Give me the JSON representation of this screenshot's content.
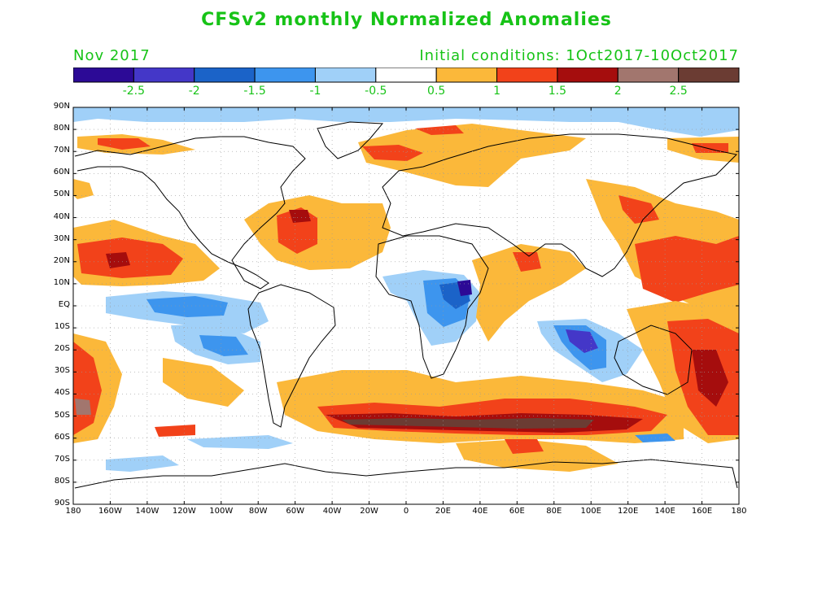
{
  "title": "CFSv2 monthly Normalized Anomalies",
  "month": "Nov 2017",
  "initial_conditions": "Initial conditions: 1Oct2017-10Oct2017",
  "colors": {
    "text": "#17c317",
    "ocean_default": "#ffffff",
    "coast": "#000000"
  },
  "colorbar": {
    "bins": [
      {
        "color": "#2c0a96"
      },
      {
        "color": "#4437c8"
      },
      {
        "color": "#1b63c8"
      },
      {
        "color": "#3d95ee"
      },
      {
        "color": "#a0d0f8"
      },
      {
        "color": "#ffffff"
      },
      {
        "color": "#fbb83a"
      },
      {
        "color": "#f2421a"
      },
      {
        "color": "#a50d0d"
      },
      {
        "color": "#a2766e"
      },
      {
        "color": "#6b3c33"
      }
    ],
    "labels": [
      "-2.5",
      "-2",
      "-1.5",
      "-1",
      "-0.5",
      "0.5",
      "1",
      "1.5",
      "2",
      "2.5"
    ]
  },
  "lat_labels": [
    "90N",
    "80N",
    "70N",
    "60N",
    "50N",
    "40N",
    "30N",
    "20N",
    "10N",
    "EQ",
    "10S",
    "20S",
    "30S",
    "40S",
    "50S",
    "60S",
    "70S",
    "80S",
    "90S"
  ],
  "lon_labels": [
    "180",
    "160W",
    "140W",
    "120W",
    "100W",
    "80W",
    "60W",
    "40W",
    "20W",
    "0",
    "20E",
    "40E",
    "60E",
    "80E",
    "100E",
    "120E",
    "140E",
    "160E",
    "180"
  ]
}
